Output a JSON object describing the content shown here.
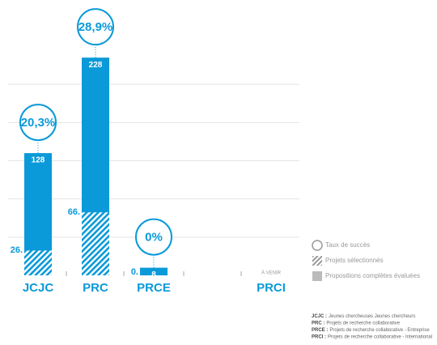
{
  "chart_data": {
    "type": "bar",
    "categories": [
      "JCJC",
      "PRC",
      "PRCE",
      "PRCI"
    ],
    "series": [
      {
        "name": "Propositions complètes évaluées",
        "color": "#0a9ad9",
        "values": [
          128,
          228,
          8,
          null
        ]
      },
      {
        "name": "Projets sélectionnés",
        "color": "#0a9ad9",
        "values": [
          26,
          66,
          0,
          null
        ],
        "value_labels": [
          "26.",
          "66.",
          "0.",
          null
        ]
      },
      {
        "name": "Taux de succès",
        "color": "#0a9ad9",
        "values": [
          20.3,
          28.9,
          0,
          null
        ],
        "value_labels": [
          "20,3%",
          "28,9%",
          "0%",
          null
        ]
      }
    ],
    "annotations": [
      {
        "category": 3,
        "text": "À VENIR"
      }
    ],
    "ylim": [
      0,
      240
    ],
    "yticks": [
      40,
      80,
      120,
      160,
      200
    ],
    "grid": true,
    "notes": [
      {
        "key": "JCJC :",
        "text": "Jeunes chercheuses Jeunes chercheurs"
      },
      {
        "key": "PRC :",
        "text": "Projets de recherche collaborative"
      },
      {
        "key": "PRCE :",
        "text": "Projets de recherche collaborative - Entreprise"
      },
      {
        "key": "PRCI :",
        "text": "Projets de recherche collaborative - International"
      }
    ]
  }
}
